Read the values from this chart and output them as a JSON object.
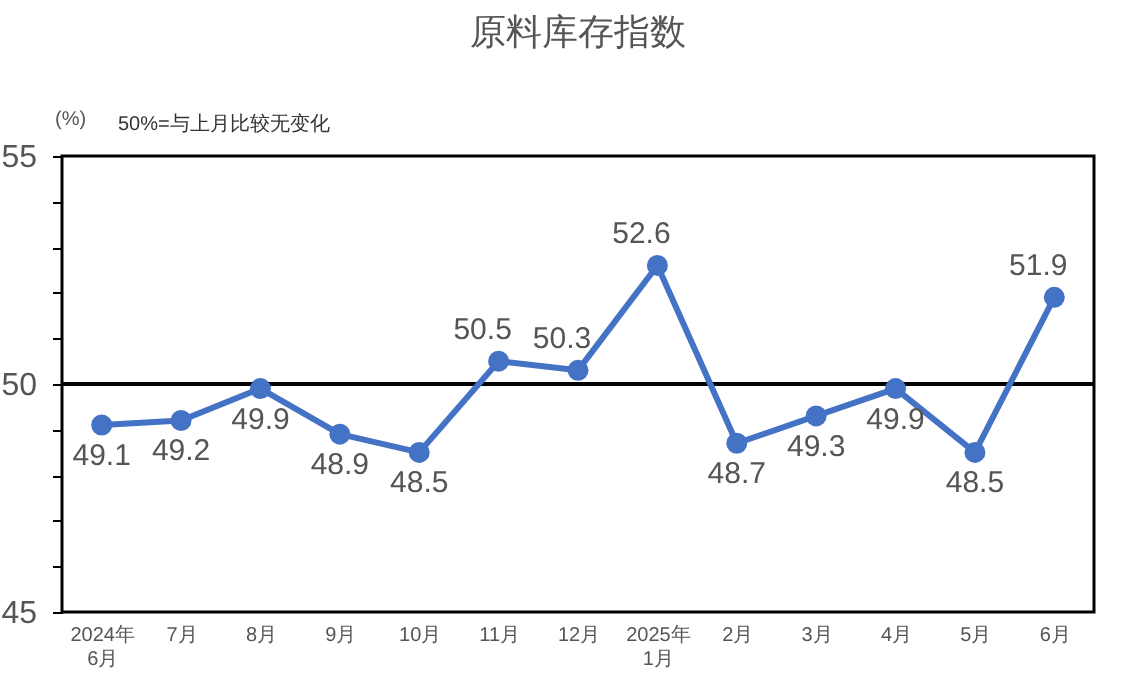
{
  "chart_data": {
    "type": "line",
    "title": "原料库存指数",
    "ylabel": "(%)",
    "annotations": [
      "50%=与上月比较无变化"
    ],
    "categories": [
      "2024年\n6月",
      "7月",
      "8月",
      "9月",
      "10月",
      "11月",
      "12月",
      "2025年\n1月",
      "2月",
      "3月",
      "4月",
      "5月",
      "6月"
    ],
    "series": [
      {
        "color": "#4472c4",
        "values": [
          49.1,
          49.2,
          49.9,
          48.9,
          48.5,
          50.5,
          50.3,
          52.6,
          48.7,
          49.3,
          49.9,
          48.5,
          51.9
        ]
      }
    ],
    "ylim": [
      45,
      55
    ],
    "yticks": [
      45,
      {
        "value": 46,
        "label": null
      },
      {
        "value": 47,
        "label": null
      },
      {
        "value": 48,
        "label": null
      },
      {
        "value": 49,
        "label": null
      },
      50,
      {
        "value": 51,
        "label": null
      },
      {
        "value": 52,
        "label": null
      },
      {
        "value": 53,
        "label": null
      },
      {
        "value": 54,
        "label": null
      },
      55
    ],
    "ref_lines": [
      {
        "axis": "y",
        "value": 50,
        "color": "#000000"
      }
    ],
    "data_labels": true,
    "marker": "circle",
    "grid": false
  }
}
